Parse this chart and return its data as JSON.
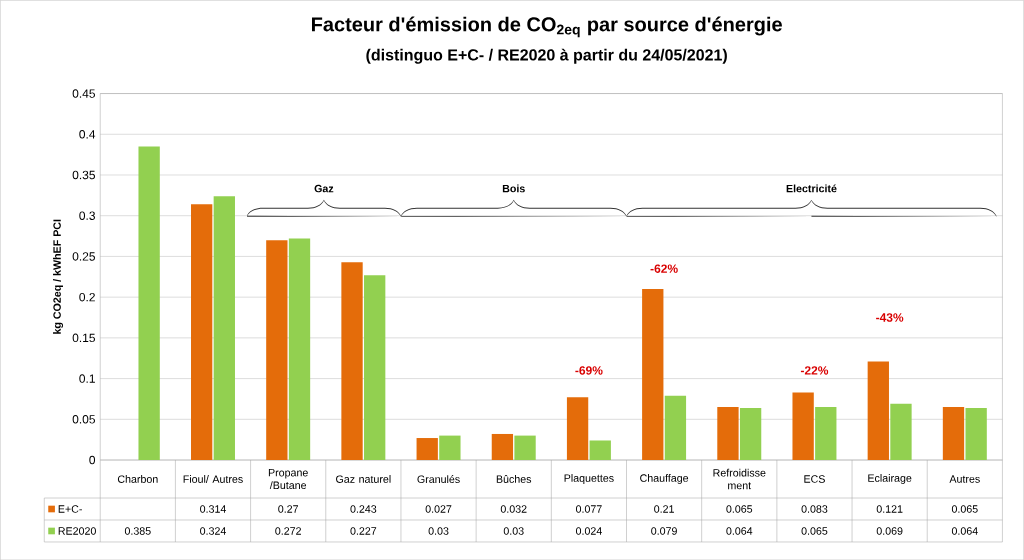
{
  "chart_data": {
    "type": "bar",
    "title": "Facteur d'émission de CO$_{2eq}$ par source d'énergie",
    "subtitle": "(distinguo  E+C- / RE2020  à partir du 24/05/2021)",
    "ylabel": "kg CO2eq / kWhEF PCI",
    "categories": [
      "Charbon",
      "Fioul/ Autres",
      "Propane /Butane",
      "Gaz naturel",
      "Granulés",
      "Bûches",
      "Plaquettes",
      "Chauffage",
      "Refroidisse ment",
      "ECS",
      "Eclairage",
      "Autres"
    ],
    "series": [
      {
        "name": "E+C-",
        "color": "#e46c0a",
        "values": [
          null,
          0.314,
          0.27,
          0.243,
          0.027,
          0.032,
          0.077,
          0.21,
          0.065,
          0.083,
          0.121,
          0.065
        ]
      },
      {
        "name": "RE2020",
        "color": "#92d050",
        "values": [
          0.385,
          0.324,
          0.272,
          0.227,
          0.03,
          0.03,
          0.024,
          0.079,
          0.064,
          0.065,
          0.069,
          0.064
        ]
      }
    ],
    "ylim": [
      0,
      0.45
    ],
    "yticks": [
      0,
      0.05,
      0.1,
      0.15,
      0.2,
      0.25,
      0.3,
      0.35,
      0.4,
      0.45
    ],
    "grid": "y",
    "legend": "bottom",
    "data_labels": true,
    "annotations": [
      "-69%",
      "-62%",
      "-22%",
      "-43%",
      "Gaz",
      "Bois",
      "Electricité"
    ]
  }
}
